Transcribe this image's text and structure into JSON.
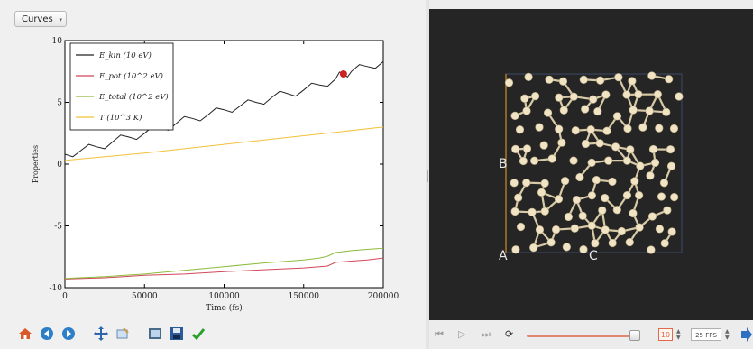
{
  "dropdown": {
    "label": "Curves"
  },
  "chart_data": {
    "type": "line",
    "xlabel": "Time (fs)",
    "ylabel": "Properties",
    "xlim": [
      0,
      200000
    ],
    "ylim": [
      -10,
      10
    ],
    "x_ticks": [
      0,
      50000,
      100000,
      150000,
      200000
    ],
    "x_tick_labels": [
      "0",
      "50000",
      "100000",
      "150000",
      "200000"
    ],
    "y_ticks": [
      -10,
      -5,
      0,
      5,
      10
    ],
    "y_tick_labels": [
      "-10",
      "-5",
      "0",
      "5",
      "10"
    ],
    "legend_placement": "top-left",
    "grid": false,
    "series": [
      {
        "name": "E_kin (10 eV)",
        "color": "#222222",
        "x": [
          0,
          10000,
          20000,
          30000,
          40000,
          50000,
          60000,
          70000,
          80000,
          90000,
          100000,
          110000,
          120000,
          130000,
          140000,
          150000,
          160000,
          170000,
          175000,
          180000,
          190000,
          200000
        ],
        "y": [
          0.8,
          1.1,
          1.4,
          1.8,
          2.2,
          2.5,
          2.9,
          3.3,
          3.7,
          4.0,
          4.4,
          4.7,
          5.0,
          5.4,
          5.7,
          6.0,
          6.4,
          6.9,
          7.3,
          7.5,
          7.9,
          8.3
        ]
      },
      {
        "name": "E_pot (10^2 eV)",
        "color": "#d0485a",
        "x": [
          0,
          25000,
          50000,
          75000,
          100000,
          125000,
          150000,
          160000,
          165000,
          170000,
          180000,
          190000,
          200000
        ],
        "y": [
          -9.3,
          -9.2,
          -9.0,
          -8.9,
          -8.7,
          -8.55,
          -8.4,
          -8.3,
          -8.25,
          -7.95,
          -7.85,
          -7.75,
          -7.6
        ]
      },
      {
        "name": "E_total (10^2 eV)",
        "color": "#8cbc3c",
        "x": [
          0,
          25000,
          50000,
          75000,
          100000,
          125000,
          150000,
          160000,
          165000,
          170000,
          180000,
          190000,
          200000
        ],
        "y": [
          -9.25,
          -9.1,
          -8.9,
          -8.6,
          -8.3,
          -8.0,
          -7.75,
          -7.6,
          -7.45,
          -7.15,
          -7.0,
          -6.9,
          -6.8
        ]
      },
      {
        "name": "T (10^3 K)",
        "color": "#f2c23a",
        "x": [
          0,
          25000,
          50000,
          75000,
          100000,
          125000,
          150000,
          175000,
          200000
        ],
        "y": [
          0.3,
          0.6,
          0.9,
          1.25,
          1.6,
          1.95,
          2.3,
          2.65,
          3.0
        ]
      }
    ],
    "highlight": {
      "x": 175000,
      "y": 7.3,
      "color": "#cc2222"
    }
  },
  "toolbar": {
    "icons": [
      "home-icon",
      "back-icon",
      "forward-icon",
      "pan-icon",
      "zoom-icon",
      "configure-icon",
      "save-icon",
      "apply-icon"
    ]
  },
  "viewer": {
    "axis_labels": [
      "A",
      "B",
      "C"
    ],
    "atom_color": "#f0e4c4",
    "bond_color": "#d8caa6",
    "background": "#252525"
  },
  "player": {
    "frame_value": "10",
    "fps_value": "25 FPS",
    "slider_fraction": 0.95
  }
}
